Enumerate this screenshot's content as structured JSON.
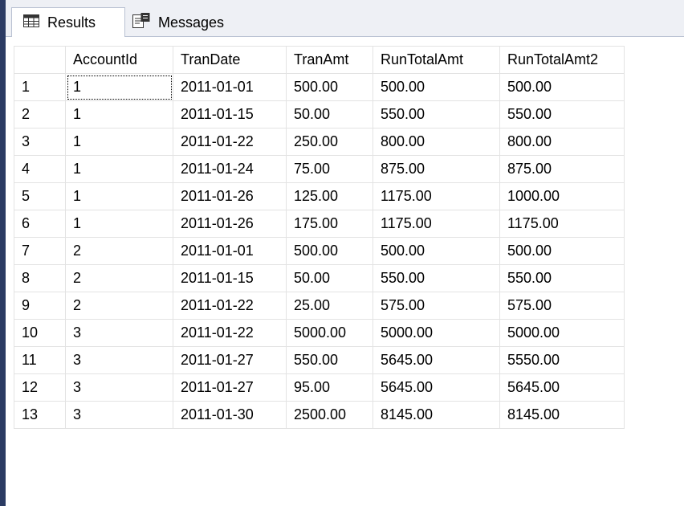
{
  "tabs": [
    {
      "label": "Results",
      "icon": "grid-icon",
      "active": true
    },
    {
      "label": "Messages",
      "icon": "messages-icon",
      "active": false
    }
  ],
  "grid": {
    "columns": [
      "",
      "AccountId",
      "TranDate",
      "TranAmt",
      "RunTotalAmt",
      "RunTotalAmt2"
    ],
    "rows": [
      [
        "1",
        "1",
        "2011-01-01",
        "500.00",
        "500.00",
        "500.00"
      ],
      [
        "2",
        "1",
        "2011-01-15",
        "50.00",
        "550.00",
        "550.00"
      ],
      [
        "3",
        "1",
        "2011-01-22",
        "250.00",
        "800.00",
        "800.00"
      ],
      [
        "4",
        "1",
        "2011-01-24",
        "75.00",
        "875.00",
        "875.00"
      ],
      [
        "5",
        "1",
        "2011-01-26",
        "125.00",
        "1175.00",
        "1000.00"
      ],
      [
        "6",
        "1",
        "2011-01-26",
        "175.00",
        "1175.00",
        "1175.00"
      ],
      [
        "7",
        "2",
        "2011-01-01",
        "500.00",
        "500.00",
        "500.00"
      ],
      [
        "8",
        "2",
        "2011-01-15",
        "50.00",
        "550.00",
        "550.00"
      ],
      [
        "9",
        "2",
        "2011-01-22",
        "25.00",
        "575.00",
        "575.00"
      ],
      [
        "10",
        "3",
        "2011-01-22",
        "5000.00",
        "5000.00",
        "5000.00"
      ],
      [
        "11",
        "3",
        "2011-01-27",
        "550.00",
        "5645.00",
        "5550.00"
      ],
      [
        "12",
        "3",
        "2011-01-27",
        "95.00",
        "5645.00",
        "5645.00"
      ],
      [
        "13",
        "3",
        "2011-01-30",
        "2500.00",
        "8145.00",
        "8145.00"
      ]
    ]
  },
  "colors": {
    "left_stripe": "#2b3b63",
    "tabstrip_bg": "#eef0f5",
    "grid_line": "#e3e3e3"
  }
}
